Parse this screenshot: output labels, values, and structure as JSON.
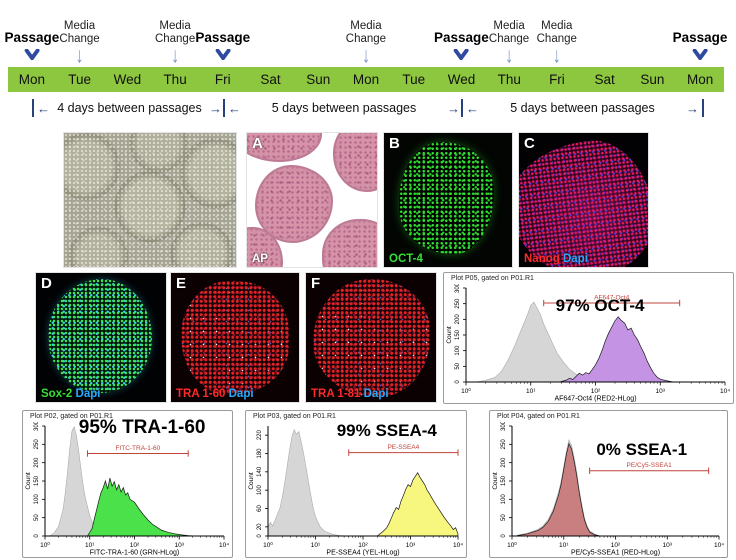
{
  "timeline": {
    "bar_color": "#8dc63f",
    "passage_arrow_color": "#2e4ba0",
    "media_arrow_color": "#7d99c6",
    "days": [
      "Mon",
      "Tue",
      "Wed",
      "Thu",
      "Fri",
      "Sat",
      "Sun",
      "Mon",
      "Tue",
      "Wed",
      "Thu",
      "Fri",
      "Sat",
      "Sun",
      "Mon"
    ],
    "events": [
      {
        "label": "Passage",
        "type": "passage",
        "day": 1
      },
      {
        "label": "Media Change",
        "type": "media",
        "day": 2
      },
      {
        "label": "Media Change",
        "type": "media",
        "day": 4
      },
      {
        "label": "Passage",
        "type": "passage",
        "day": 5
      },
      {
        "label": "Media Change",
        "type": "media",
        "day": 8
      },
      {
        "label": "Passage",
        "type": "passage",
        "day": 10
      },
      {
        "label": "Media Change",
        "type": "media",
        "day": 11
      },
      {
        "label": "Media Change",
        "type": "media",
        "day": 12
      },
      {
        "label": "Passage",
        "type": "passage",
        "day": 15
      }
    ],
    "spans": [
      "4 days between passages",
      "5 days between passages",
      "5 days between passages"
    ]
  },
  "micrographs": [
    {
      "id": "phase",
      "letter": "",
      "stains": []
    },
    {
      "id": "ap",
      "letter": "A",
      "stains": [
        {
          "text": "AP",
          "color": "#ffffff"
        }
      ]
    },
    {
      "id": "oct4",
      "letter": "B",
      "stains": [
        {
          "text": "OCT-4",
          "color": "#35e035"
        }
      ]
    },
    {
      "id": "nanog",
      "letter": "C",
      "stains": [
        {
          "text": "Nanog",
          "color": "#ff2a2a"
        },
        {
          "text": "Dapi",
          "color": "#2aa9ff"
        }
      ]
    },
    {
      "id": "sox2",
      "letter": "D",
      "stains": [
        {
          "text": "Sox-2",
          "color": "#35e035"
        },
        {
          "text": "Dapi",
          "color": "#2aa9ff"
        }
      ]
    },
    {
      "id": "tra-1-60",
      "letter": "E",
      "stains": [
        {
          "text": "TRA 1-60",
          "color": "#ff2a2a"
        },
        {
          "text": "Dapi",
          "color": "#2aa9ff"
        }
      ]
    },
    {
      "id": "tra-1-81",
      "letter": "F",
      "stains": [
        {
          "text": "TRA 1-81",
          "color": "#ff2a2a"
        },
        {
          "text": "Dapi",
          "color": "#2aa9ff"
        }
      ]
    }
  ],
  "chart_data": [
    {
      "type": "area",
      "header": "Plot P05, gated on P01.R1",
      "percent_label": "97% OCT-4",
      "gate_label": "AF647-Oct4",
      "xlabel": "AF647-Oct4 (RED2-HLog)",
      "ylabel": "Count",
      "xticks": [
        "10⁰",
        "10¹",
        "10²",
        "10³",
        "10⁴"
      ],
      "xrange_decades": [
        0,
        4
      ],
      "yticks": [
        0,
        50,
        100,
        150,
        200,
        250,
        300
      ],
      "ymax": 300,
      "fill": "#c493e3",
      "accent": "#c0443c",
      "gate": {
        "from": 1.2,
        "to": 3.3,
        "count": 252
      },
      "pct_pos": {
        "x": 54,
        "y": 18
      },
      "control": [
        [
          0.15,
          0
        ],
        [
          0.3,
          5
        ],
        [
          0.45,
          15
        ],
        [
          0.55,
          35
        ],
        [
          0.65,
          70
        ],
        [
          0.75,
          115
        ],
        [
          0.85,
          165
        ],
        [
          0.95,
          215
        ],
        [
          1.0,
          245
        ],
        [
          1.05,
          255
        ],
        [
          1.1,
          235
        ],
        [
          1.15,
          215
        ],
        [
          1.2,
          185
        ],
        [
          1.3,
          140
        ],
        [
          1.4,
          95
        ],
        [
          1.5,
          65
        ],
        [
          1.6,
          40
        ],
        [
          1.7,
          25
        ],
        [
          1.8,
          15
        ],
        [
          2.0,
          7
        ],
        [
          2.2,
          3
        ],
        [
          2.5,
          1
        ],
        [
          2.8,
          0
        ]
      ],
      "sample": [
        [
          1.45,
          0
        ],
        [
          1.55,
          6
        ],
        [
          1.6,
          12
        ],
        [
          1.65,
          8
        ],
        [
          1.7,
          18
        ],
        [
          1.75,
          28
        ],
        [
          1.8,
          22
        ],
        [
          1.85,
          30
        ],
        [
          1.9,
          26
        ],
        [
          1.95,
          40
        ],
        [
          2.0,
          55
        ],
        [
          2.05,
          75
        ],
        [
          2.1,
          100
        ],
        [
          2.15,
          130
        ],
        [
          2.2,
          155
        ],
        [
          2.25,
          175
        ],
        [
          2.3,
          195
        ],
        [
          2.35,
          208
        ],
        [
          2.4,
          196
        ],
        [
          2.45,
          188
        ],
        [
          2.5,
          166
        ],
        [
          2.55,
          172
        ],
        [
          2.6,
          150
        ],
        [
          2.65,
          135
        ],
        [
          2.7,
          112
        ],
        [
          2.75,
          92
        ],
        [
          2.8,
          66
        ],
        [
          2.85,
          46
        ],
        [
          2.9,
          28
        ],
        [
          2.95,
          16
        ],
        [
          3.0,
          9
        ],
        [
          3.1,
          4
        ],
        [
          3.2,
          0
        ]
      ]
    },
    {
      "type": "area",
      "header": "Plot P02, gated on P01.R1",
      "percent_label": "95% TRA-1-60",
      "gate_label": "FITC-TRA-1-60",
      "xlabel": "FITC-TRA-1-60 (GRN-HLog)",
      "ylabel": "Count",
      "xticks": [
        "10⁰",
        "10¹",
        "10²",
        "10³",
        "10⁴"
      ],
      "xrange_decades": [
        0,
        4
      ],
      "yticks": [
        0,
        50,
        100,
        150,
        200,
        250,
        300
      ],
      "ymax": 300,
      "fill": "#4ae14a",
      "accent": "#c0443c",
      "gate": {
        "from": 0.95,
        "to": 3.2,
        "count": 225
      },
      "pct_pos": {
        "x": 57,
        "y": 4
      },
      "control": [
        [
          0.1,
          0
        ],
        [
          0.2,
          8
        ],
        [
          0.3,
          25
        ],
        [
          0.4,
          70
        ],
        [
          0.45,
          115
        ],
        [
          0.5,
          170
        ],
        [
          0.55,
          235
        ],
        [
          0.6,
          285
        ],
        [
          0.65,
          298
        ],
        [
          0.7,
          275
        ],
        [
          0.75,
          235
        ],
        [
          0.8,
          185
        ],
        [
          0.85,
          140
        ],
        [
          0.9,
          105
        ],
        [
          1.0,
          55
        ],
        [
          1.1,
          25
        ],
        [
          1.2,
          12
        ],
        [
          1.35,
          5
        ],
        [
          1.5,
          2
        ],
        [
          1.7,
          0
        ]
      ],
      "sample": [
        [
          0.95,
          0
        ],
        [
          1.05,
          20
        ],
        [
          1.1,
          45
        ],
        [
          1.15,
          70
        ],
        [
          1.2,
          95
        ],
        [
          1.25,
          118
        ],
        [
          1.3,
          132
        ],
        [
          1.35,
          150
        ],
        [
          1.4,
          128
        ],
        [
          1.45,
          158
        ],
        [
          1.5,
          136
        ],
        [
          1.55,
          148
        ],
        [
          1.6,
          126
        ],
        [
          1.65,
          140
        ],
        [
          1.7,
          120
        ],
        [
          1.75,
          132
        ],
        [
          1.8,
          112
        ],
        [
          1.85,
          118
        ],
        [
          1.9,
          100
        ],
        [
          2.0,
          92
        ],
        [
          2.1,
          74
        ],
        [
          2.2,
          58
        ],
        [
          2.3,
          44
        ],
        [
          2.4,
          32
        ],
        [
          2.5,
          24
        ],
        [
          2.6,
          16
        ],
        [
          2.75,
          10
        ],
        [
          2.9,
          6
        ],
        [
          3.05,
          3
        ],
        [
          3.2,
          1
        ],
        [
          3.35,
          0
        ]
      ]
    },
    {
      "type": "area",
      "header": "Plot P03, gated on P01.R1",
      "percent_label": "99% SSEA-4",
      "gate_label": "PE-SSEA4",
      "xlabel": "PE-SSEA4 (YEL-HLog)",
      "ylabel": "Count",
      "xticks": [
        "10⁰",
        "10¹",
        "10²",
        "10³",
        "10⁴"
      ],
      "xrange_decades": [
        0,
        4
      ],
      "yticks": [
        0,
        20,
        60,
        100,
        140,
        180,
        220
      ],
      "ymax": 240,
      "fill": "#f7f780",
      "accent": "#c0443c",
      "gate": {
        "from": 1.7,
        "to": 4.0,
        "count": 182
      },
      "pct_pos": {
        "x": 64,
        "y": 7
      },
      "control": [
        [
          0.0,
          18
        ],
        [
          0.05,
          30
        ],
        [
          0.1,
          22
        ],
        [
          0.15,
          35
        ],
        [
          0.2,
          48
        ],
        [
          0.25,
          60
        ],
        [
          0.3,
          85
        ],
        [
          0.35,
          115
        ],
        [
          0.4,
          150
        ],
        [
          0.45,
          185
        ],
        [
          0.5,
          215
        ],
        [
          0.55,
          232
        ],
        [
          0.6,
          222
        ],
        [
          0.65,
          228
        ],
        [
          0.7,
          205
        ],
        [
          0.75,
          180
        ],
        [
          0.8,
          150
        ],
        [
          0.85,
          120
        ],
        [
          0.9,
          90
        ],
        [
          0.95,
          62
        ],
        [
          1.0,
          42
        ],
        [
          1.1,
          20
        ],
        [
          1.2,
          10
        ],
        [
          1.35,
          4
        ],
        [
          1.5,
          1
        ],
        [
          1.7,
          0
        ]
      ],
      "sample": [
        [
          2.3,
          0
        ],
        [
          2.4,
          8
        ],
        [
          2.5,
          18
        ],
        [
          2.55,
          28
        ],
        [
          2.6,
          40
        ],
        [
          2.65,
          52
        ],
        [
          2.7,
          62
        ],
        [
          2.75,
          58
        ],
        [
          2.8,
          76
        ],
        [
          2.85,
          88
        ],
        [
          2.9,
          102
        ],
        [
          2.95,
          112
        ],
        [
          3.0,
          108
        ],
        [
          3.05,
          122
        ],
        [
          3.1,
          130
        ],
        [
          3.15,
          138
        ],
        [
          3.2,
          128
        ],
        [
          3.25,
          120
        ],
        [
          3.3,
          112
        ],
        [
          3.35,
          100
        ],
        [
          3.4,
          92
        ],
        [
          3.5,
          74
        ],
        [
          3.6,
          58
        ],
        [
          3.7,
          42
        ],
        [
          3.8,
          28
        ],
        [
          3.85,
          22
        ],
        [
          3.9,
          14
        ],
        [
          3.95,
          18
        ],
        [
          4.0,
          4
        ]
      ]
    },
    {
      "type": "area",
      "header": "Plot P04, gated on P01.R1",
      "percent_label": "0% SSEA-1",
      "gate_label": "PE/Cy5-SSEA1",
      "xlabel": "PE/Cy5-SSEA1 (RED-HLog)",
      "ylabel": "Count",
      "xticks": [
        "10⁰",
        "10¹",
        "10²",
        "10³",
        "10⁴"
      ],
      "xrange_decades": [
        0,
        4
      ],
      "yticks": [
        0,
        50,
        100,
        150,
        200,
        250,
        300
      ],
      "ymax": 300,
      "fill": "#c97f7f",
      "accent": "#c0443c",
      "gate": {
        "from": 1.5,
        "to": 3.8,
        "count": 178
      },
      "pct_pos": {
        "x": 64,
        "y": 20
      },
      "control": [
        [
          0.1,
          2
        ],
        [
          0.3,
          8
        ],
        [
          0.5,
          18
        ],
        [
          0.6,
          28
        ],
        [
          0.7,
          45
        ],
        [
          0.8,
          75
        ],
        [
          0.9,
          120
        ],
        [
          0.95,
          150
        ],
        [
          1.0,
          190
        ],
        [
          1.05,
          230
        ],
        [
          1.1,
          262
        ],
        [
          1.15,
          248
        ],
        [
          1.2,
          215
        ],
        [
          1.25,
          175
        ],
        [
          1.3,
          125
        ],
        [
          1.35,
          85
        ],
        [
          1.4,
          50
        ],
        [
          1.45,
          28
        ],
        [
          1.5,
          14
        ],
        [
          1.6,
          5
        ],
        [
          1.7,
          0
        ]
      ],
      "sample": [
        [
          0.1,
          1
        ],
        [
          0.3,
          6
        ],
        [
          0.5,
          15
        ],
        [
          0.6,
          24
        ],
        [
          0.7,
          40
        ],
        [
          0.8,
          68
        ],
        [
          0.9,
          112
        ],
        [
          0.95,
          142
        ],
        [
          1.0,
          182
        ],
        [
          1.05,
          222
        ],
        [
          1.1,
          252
        ],
        [
          1.15,
          238
        ],
        [
          1.2,
          205
        ],
        [
          1.25,
          165
        ],
        [
          1.3,
          118
        ],
        [
          1.35,
          78
        ],
        [
          1.4,
          44
        ],
        [
          1.45,
          24
        ],
        [
          1.5,
          11
        ],
        [
          1.6,
          3
        ],
        [
          1.7,
          0
        ]
      ]
    }
  ]
}
